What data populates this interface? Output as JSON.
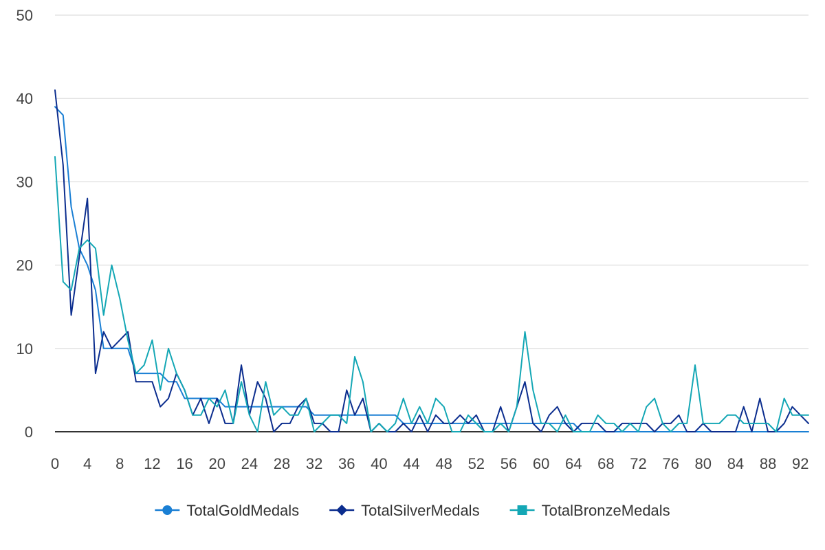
{
  "chart_data": {
    "type": "line",
    "title": "",
    "xlabel": "",
    "ylabel": "",
    "ylim": [
      0,
      50
    ],
    "xlim": [
      0,
      93
    ],
    "yticks": [
      0,
      10,
      20,
      30,
      40,
      50
    ],
    "xticks": [
      0,
      4,
      8,
      12,
      16,
      20,
      24,
      28,
      32,
      36,
      40,
      44,
      48,
      52,
      56,
      60,
      64,
      68,
      72,
      76,
      80,
      84,
      88,
      92
    ],
    "grid": true,
    "legend_position": "bottom",
    "x": [
      0,
      1,
      2,
      3,
      4,
      5,
      6,
      7,
      8,
      9,
      10,
      11,
      12,
      13,
      14,
      15,
      16,
      17,
      18,
      19,
      20,
      21,
      22,
      23,
      24,
      25,
      26,
      27,
      28,
      29,
      30,
      31,
      32,
      33,
      34,
      35,
      36,
      37,
      38,
      39,
      40,
      41,
      42,
      43,
      44,
      45,
      46,
      47,
      48,
      49,
      50,
      51,
      52,
      53,
      54,
      55,
      56,
      57,
      58,
      59,
      60,
      61,
      62,
      63,
      64,
      65,
      66,
      67,
      68,
      69,
      70,
      71,
      72,
      73,
      74,
      75,
      76,
      77,
      78,
      79,
      80,
      81,
      82,
      83,
      84,
      85,
      86,
      87,
      88,
      89,
      90,
      91,
      92,
      93
    ],
    "series": [
      {
        "name": "TotalGoldMedals",
        "color": "#1a7fd4",
        "marker": "circle",
        "values": [
          39,
          38,
          27,
          22,
          20,
          17,
          10,
          10,
          10,
          10,
          7,
          7,
          7,
          7,
          6,
          6,
          4,
          4,
          4,
          4,
          4,
          3,
          3,
          3,
          3,
          3,
          3,
          3,
          3,
          3,
          3,
          3,
          2,
          2,
          2,
          2,
          2,
          2,
          2,
          2,
          2,
          2,
          2,
          1,
          1,
          1,
          1,
          1,
          1,
          1,
          1,
          1,
          1,
          1,
          1,
          1,
          1,
          1,
          1,
          1,
          1,
          1,
          1,
          1,
          1,
          0,
          0,
          0,
          0,
          0,
          0,
          0,
          0,
          0,
          0,
          0,
          0,
          0,
          0,
          0,
          0,
          0,
          0,
          0,
          0,
          0,
          0,
          0,
          0,
          0,
          0,
          0,
          0,
          0
        ]
      },
      {
        "name": "TotalSilverMedals",
        "color": "#0b2d8e",
        "marker": "diamond",
        "values": [
          41,
          32,
          14,
          21,
          28,
          7,
          12,
          10,
          11,
          12,
          6,
          6,
          6,
          3,
          4,
          7,
          5,
          2,
          4,
          1,
          4,
          1,
          1,
          8,
          2,
          6,
          4,
          0,
          1,
          1,
          3,
          4,
          1,
          1,
          0,
          0,
          5,
          2,
          4,
          0,
          1,
          0,
          0,
          1,
          0,
          2,
          0,
          2,
          1,
          1,
          2,
          1,
          2,
          0,
          0,
          3,
          0,
          3,
          6,
          1,
          0,
          2,
          3,
          1,
          0,
          1,
          1,
          1,
          0,
          0,
          1,
          1,
          1,
          1,
          0,
          1,
          1,
          2,
          0,
          0,
          1,
          0,
          0,
          0,
          0,
          3,
          0,
          4,
          0,
          0,
          1,
          3,
          2,
          1
        ]
      },
      {
        "name": "TotalBronzeMedals",
        "color": "#14a7b5",
        "marker": "square",
        "values": [
          33,
          18,
          17,
          22,
          23,
          22,
          14,
          20,
          16,
          11,
          7,
          8,
          11,
          5,
          10,
          7,
          5,
          2,
          2,
          4,
          3,
          5,
          1,
          6,
          2,
          0,
          6,
          2,
          3,
          2,
          2,
          4,
          0,
          1,
          2,
          2,
          1,
          9,
          6,
          0,
          1,
          0,
          1,
          4,
          1,
          3,
          1,
          4,
          3,
          0,
          0,
          2,
          1,
          0,
          0,
          1,
          0,
          3,
          12,
          5,
          1,
          1,
          0,
          2,
          0,
          0,
          0,
          2,
          1,
          1,
          0,
          1,
          0,
          3,
          4,
          1,
          0,
          1,
          1,
          8,
          1,
          1,
          1,
          2,
          2,
          1,
          1,
          1,
          1,
          0,
          4,
          2,
          2,
          2
        ]
      }
    ]
  }
}
